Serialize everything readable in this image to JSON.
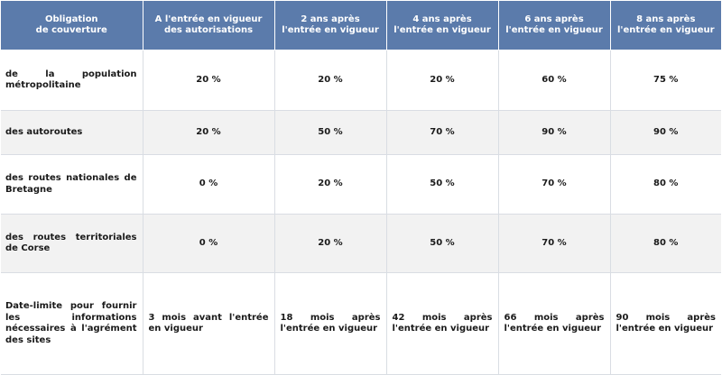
{
  "header": {
    "col0": "Obligation\nde couverture",
    "col1": "A l'entrée en vigueur des autorisations",
    "col2": "2 ans après l'entrée en vigueur",
    "col3": "4 ans après l'entrée en vigueur",
    "col4": "6 ans après l'entrée en vigueur",
    "col5": "8 ans après l'entrée en vigueur"
  },
  "rows": [
    {
      "label": "de la population métropolitaine",
      "values": [
        "20 %",
        "20 %",
        "20 %",
        "60 %",
        "75 %"
      ]
    },
    {
      "label": "des autoroutes",
      "values": [
        "20 %",
        "50 %",
        "70 %",
        "90 %",
        "90 %"
      ]
    },
    {
      "label": "des routes nationales de Bretagne",
      "values": [
        "0 %",
        "20 %",
        "50 %",
        "70 %",
        "80 %"
      ]
    },
    {
      "label": "des routes territoriales de Corse",
      "values": [
        "0 %",
        "20 %",
        "50 %",
        "70 %",
        "80 %"
      ]
    },
    {
      "label": "Date-limite pour fournir les informations nécessaires à l'agrément des sites",
      "values": [
        "3 mois avant l'entrée en vigueur",
        "18 mois après l'entrée en vigueur",
        "42 mois après l'entrée en vigueur",
        "66 mois après l'entrée en vigueur",
        "90 mois après l'entrée en vigueur"
      ]
    }
  ],
  "colors": {
    "header_bg": "#5b7bab",
    "header_text": "#ffffff",
    "row_alt": "#f2f2f2"
  }
}
